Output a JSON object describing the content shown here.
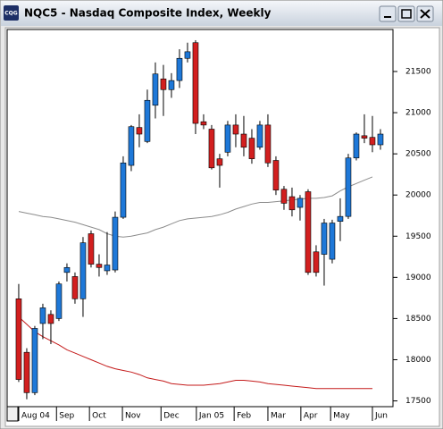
{
  "icon_label": "CQG",
  "chart_data": {
    "type": "candlestick",
    "title": "NQC5 - Nasdaq Composite Index, Weekly",
    "up_color": "#1e78d8",
    "down_color": "#d21f1f",
    "open": [
      18740,
      18090,
      17600,
      18440,
      18550,
      18500,
      19060,
      19010,
      18740,
      19530,
      19160,
      19080,
      19090,
      19730,
      20360,
      20820,
      20650,
      21090,
      21410,
      21280,
      21390,
      21660,
      21850,
      20890,
      20800,
      20440,
      20520,
      20850,
      20740,
      20690,
      20580,
      20850,
      20420,
      20070,
      19980,
      19850,
      20040,
      19310,
      19280,
      19220,
      19680,
      19740,
      20450,
      20720,
      20700,
      20610
    ],
    "high": [
      18920,
      18140,
      18410,
      18680,
      18600,
      18950,
      19170,
      19060,
      19490,
      19570,
      19280,
      19550,
      19800,
      20470,
      20850,
      20980,
      21280,
      21610,
      21580,
      21480,
      21770,
      21850,
      21880,
      20980,
      20850,
      20500,
      20900,
      20980,
      20960,
      20800,
      20900,
      20980,
      20470,
      20110,
      20090,
      20000,
      20070,
      19390,
      19710,
      19700,
      19960,
      20500,
      20760,
      20980,
      20960,
      20800
    ],
    "low": [
      17730,
      17520,
      17570,
      18250,
      18190,
      18470,
      18950,
      18680,
      18520,
      19120,
      19010,
      19030,
      19060,
      19710,
      20290,
      20580,
      20630,
      20930,
      20960,
      21180,
      21300,
      21610,
      20740,
      20800,
      20310,
      20090,
      20470,
      20580,
      20470,
      20380,
      20550,
      20340,
      20000,
      19820,
      19740,
      19690,
      19030,
      19010,
      18900,
      19170,
      19440,
      19710,
      20420,
      20630,
      20520,
      20550
    ],
    "close": [
      17760,
      17600,
      18380,
      18630,
      18440,
      18920,
      19120,
      18740,
      19420,
      19160,
      19120,
      19150,
      19730,
      20390,
      20830,
      20740,
      21150,
      21470,
      21280,
      21390,
      21660,
      21740,
      20870,
      20850,
      20330,
      20360,
      20850,
      20740,
      20580,
      20440,
      20850,
      20390,
      20060,
      19900,
      19820,
      19960,
      19060,
      19060,
      19660,
      19660,
      19740,
      20450,
      20740,
      20690,
      20610,
      20740
    ],
    "overlays": [
      {
        "color": "#8c8c8c",
        "values": [
          19800,
          19780,
          19760,
          19740,
          19730,
          19710,
          19690,
          19670,
          19640,
          19610,
          19580,
          19530,
          19500,
          19490,
          19500,
          19520,
          19540,
          19580,
          19610,
          19650,
          19690,
          19710,
          19720,
          19730,
          19740,
          19760,
          19790,
          19830,
          19860,
          19890,
          19910,
          19910,
          19920,
          19930,
          19940,
          19950,
          19960,
          19960,
          19970,
          19990,
          20050,
          20100,
          20140,
          20180,
          20220,
          null
        ]
      },
      {
        "color": "#c41a1a",
        "values": [
          18520,
          18430,
          18340,
          18280,
          18230,
          18180,
          18120,
          18080,
          18040,
          18000,
          17960,
          17920,
          17890,
          17870,
          17850,
          17820,
          17780,
          17760,
          17740,
          17710,
          17700,
          17690,
          17690,
          17690,
          17700,
          17710,
          17730,
          17750,
          17750,
          17740,
          17730,
          17710,
          17700,
          17690,
          17680,
          17670,
          17660,
          17650,
          17650,
          17650,
          17650,
          17650,
          17650,
          17650,
          17650,
          null
        ]
      }
    ],
    "xlim": [
      -1.44,
      46.56
    ],
    "xticks": [
      {
        "value": 0,
        "label": "Aug 04"
      },
      {
        "value": 4.7,
        "label": "Sep"
      },
      {
        "value": 8.8,
        "label": "Oct"
      },
      {
        "value": 12.9,
        "label": "Nov"
      },
      {
        "value": 17.7,
        "label": "Dec"
      },
      {
        "value": 22.1,
        "label": "Jan 05"
      },
      {
        "value": 26.8,
        "label": "Feb"
      },
      {
        "value": 31,
        "label": "Mar"
      },
      {
        "value": 35.1,
        "label": "Apr"
      },
      {
        "value": 38.8,
        "label": "May"
      },
      {
        "value": 44,
        "label": "Jun"
      }
    ],
    "ylim": [
      17430,
      22010
    ],
    "yticks": [
      17500,
      18000,
      18500,
      19000,
      19500,
      20000,
      20500,
      21000,
      21500
    ]
  }
}
